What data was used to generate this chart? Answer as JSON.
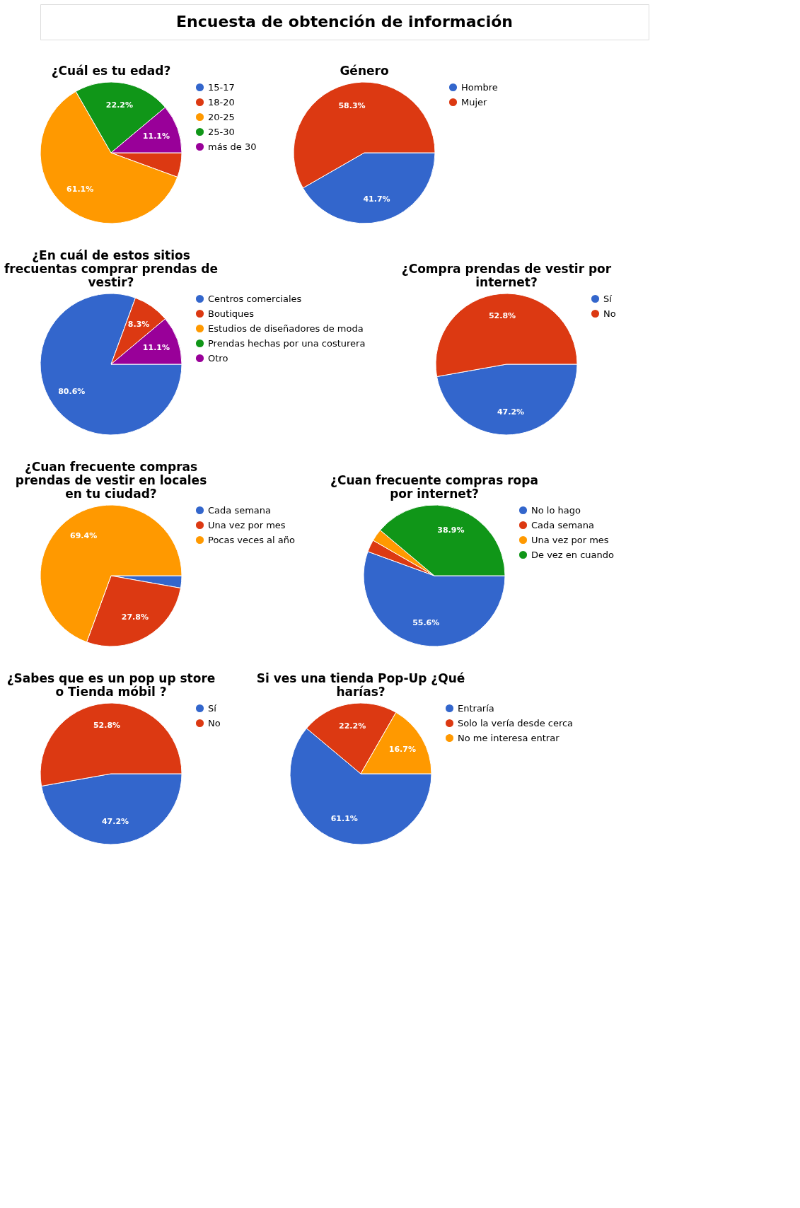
{
  "chart_data": [
    {
      "type": "other",
      "title": "Encuesta de obtención de información"
    },
    {
      "type": "pie",
      "title": "¿Cuál es tu edad?",
      "categories": [
        "15-17",
        "18-20",
        "20-25",
        "25-30",
        "más de 30"
      ],
      "values": [
        0,
        5.6,
        61.1,
        22.2,
        11.1
      ],
      "value_labels": [
        null,
        null,
        "61.1%",
        "22.2%",
        "11.1%"
      ],
      "colors": [
        "#3366cc",
        "#dc3912",
        "#ff9900",
        "#109618",
        "#990099"
      ],
      "legend": "right"
    },
    {
      "type": "pie",
      "title": "Género",
      "categories": [
        "Hombre",
        "Mujer"
      ],
      "values": [
        41.7,
        58.3
      ],
      "value_labels": [
        "41.7%",
        "58.3%"
      ],
      "colors": [
        "#3366cc",
        "#dc3912"
      ],
      "legend": "right"
    },
    {
      "type": "pie",
      "title": "¿En cuál de estos sitios frecuentas comprar prendas de vestir?",
      "categories": [
        "Centros comerciales",
        "Boutiques",
        "Estudios de diseñadores de moda",
        "Prendas hechas por una costurera",
        "Otro"
      ],
      "values": [
        80.6,
        8.3,
        0,
        0,
        11.1
      ],
      "value_labels": [
        "80.6%",
        "8.3%",
        null,
        null,
        "11.1%"
      ],
      "colors": [
        "#3366cc",
        "#dc3912",
        "#ff9900",
        "#109618",
        "#990099"
      ],
      "legend": "right"
    },
    {
      "type": "pie",
      "title": "¿Compra prendas de vestir por internet?",
      "categories": [
        "Sí",
        "No"
      ],
      "values": [
        47.2,
        52.8
      ],
      "value_labels": [
        "47.2%",
        "52.8%"
      ],
      "colors": [
        "#3366cc",
        "#dc3912"
      ],
      "legend": "right"
    },
    {
      "type": "pie",
      "title": "¿Cuan frecuente compras prendas de vestir en locales en tu ciudad?",
      "categories": [
        "Cada semana",
        "Una vez por mes",
        "Pocas veces al año"
      ],
      "values": [
        2.8,
        27.8,
        69.4
      ],
      "value_labels": [
        null,
        "27.8%",
        "69.4%"
      ],
      "colors": [
        "#3366cc",
        "#dc3912",
        "#ff9900"
      ],
      "legend": "right"
    },
    {
      "type": "pie",
      "title": "¿Cuan frecuente compras ropa por internet?",
      "categories": [
        "No lo hago",
        "Cada semana",
        "Una vez por mes",
        "De vez en cuando"
      ],
      "values": [
        55.6,
        2.8,
        2.8,
        38.9
      ],
      "value_labels": [
        "55.6%",
        null,
        null,
        "38.9%"
      ],
      "colors": [
        "#3366cc",
        "#dc3912",
        "#ff9900",
        "#109618"
      ],
      "legend": "right"
    },
    {
      "type": "pie",
      "title": "¿Sabes que es un pop up store o Tienda móbil ?",
      "categories": [
        "Sí",
        "No"
      ],
      "values": [
        47.2,
        52.8
      ],
      "value_labels": [
        "47.2%",
        "52.8%"
      ],
      "colors": [
        "#3366cc",
        "#dc3912"
      ],
      "legend": "right"
    },
    {
      "type": "pie",
      "title": "Si ves una tienda Pop-Up ¿Qué harías?",
      "categories": [
        "Entraría",
        "Solo la vería desde cerca",
        "No me interesa entrar"
      ],
      "values": [
        61.1,
        22.2,
        16.7
      ],
      "value_labels": [
        "61.1%",
        "22.2%",
        "16.7%"
      ],
      "colors": [
        "#3366cc",
        "#dc3912",
        "#ff9900"
      ],
      "legend": "right"
    }
  ]
}
